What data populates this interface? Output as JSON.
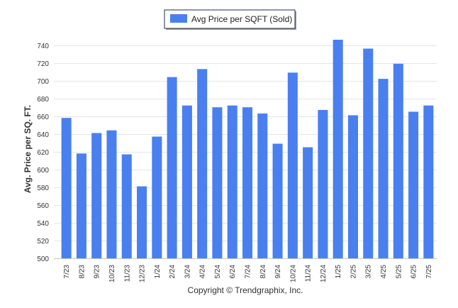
{
  "chart_data": {
    "type": "bar",
    "categories": [
      "7/23",
      "8/23",
      "9/23",
      "10/23",
      "11/23",
      "12/23",
      "1/24",
      "2/24",
      "3/24",
      "4/24",
      "5/24",
      "6/24",
      "7/24",
      "8/24",
      "9/24",
      "10/24",
      "11/24",
      "12/24",
      "1/25",
      "2/25",
      "3/25",
      "4/25",
      "5/25",
      "6/25",
      "7/25"
    ],
    "series": [
      {
        "name": "Avg Price per SQFT (Sold)",
        "color": "#4a7ff0",
        "values": [
          658,
          618,
          641,
          644,
          617,
          581,
          637,
          704,
          672,
          713,
          670,
          672,
          670,
          663,
          629,
          709,
          625,
          667,
          746,
          661,
          736,
          702,
          719,
          665,
          672
        ]
      }
    ],
    "ylabel": "Avg. Price per SQ. FT.",
    "xlabel": "",
    "ylim": [
      500,
      750
    ],
    "yticks": [
      500,
      520,
      540,
      560,
      580,
      600,
      620,
      640,
      660,
      680,
      700,
      720,
      740
    ],
    "grid": true,
    "legend_position": "top-center"
  },
  "footer": {
    "copyright": "Copyright © Trendgraphix, Inc."
  }
}
